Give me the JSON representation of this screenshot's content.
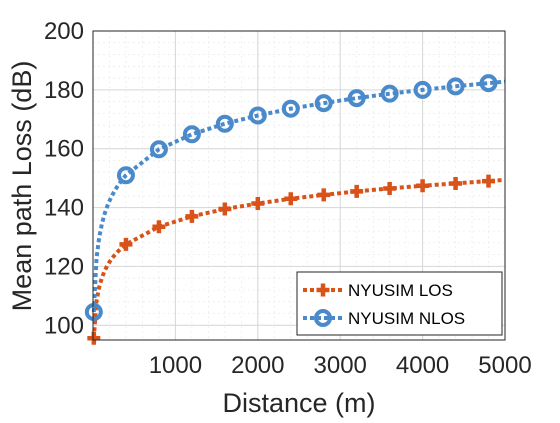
{
  "chart_data": {
    "type": "line",
    "title": "",
    "xlabel": "Distance (m)",
    "ylabel": "Mean path Loss (dB)",
    "xlim": [
      0,
      5000
    ],
    "ylim": [
      95,
      200
    ],
    "xticks": [
      1000,
      2000,
      3000,
      4000,
      5000
    ],
    "xtick_labels": [
      "1000",
      "2000",
      "3000",
      "4000",
      "5000"
    ],
    "yticks": [
      100,
      120,
      140,
      160,
      180,
      200
    ],
    "ytick_labels": [
      "100",
      "120",
      "140",
      "160",
      "180",
      "200"
    ],
    "grid": true,
    "minor_grid": true,
    "legend_position": "bottom-right",
    "series": [
      {
        "name": "NYUSIM LOS",
        "color": "#D95319",
        "line_style": "dotted",
        "marker": "plus",
        "x": [
          10,
          400,
          800,
          1200,
          1600,
          2000,
          2400,
          2800,
          3200,
          3600,
          4000,
          4400,
          4800
        ],
        "y": [
          95.6,
          127.5,
          133.5,
          137.0,
          139.5,
          141.4,
          143.0,
          144.3,
          145.5,
          146.5,
          147.4,
          148.2,
          149.0
        ],
        "curve_end": {
          "x": 5000,
          "y": 149.4
        }
      },
      {
        "name": "NYUSIM NLOS",
        "color": "#4A8ACB",
        "line_style": "dotted",
        "marker": "circle",
        "x": [
          10,
          400,
          800,
          1200,
          1600,
          2000,
          2400,
          2800,
          3200,
          3600,
          4000,
          4400,
          4800
        ],
        "y": [
          104.5,
          151.0,
          159.8,
          164.9,
          168.5,
          171.3,
          173.6,
          175.5,
          177.2,
          178.7,
          180.0,
          181.2,
          182.3
        ],
        "curve_end": {
          "x": 5000,
          "y": 182.8
        }
      }
    ]
  }
}
